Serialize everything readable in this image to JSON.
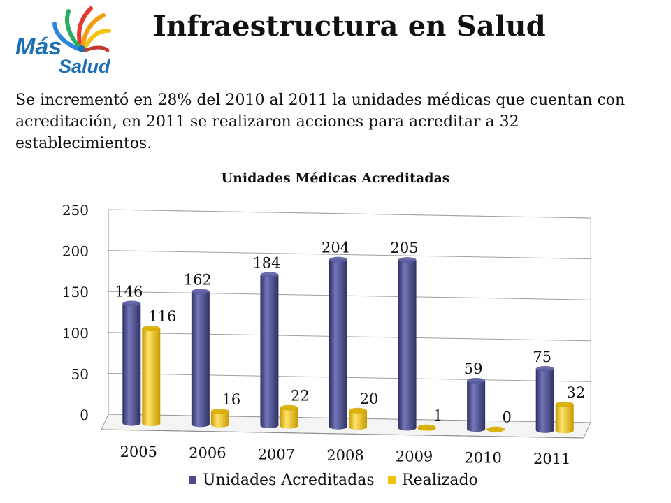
{
  "header": {
    "logo_text_1": "Más",
    "logo_text_2": "Salud",
    "title": "Infraestructura en Salud"
  },
  "body": {
    "text": "Se incrementó en 28% del 2010 al 2011 la unidades médicas que cuentan con acreditación, en 2011 se realizaron acciones para acreditar a 32 establecimientos."
  },
  "colors": {
    "series1": "#4a4d8c",
    "series2": "#f2c100",
    "axis": "#8a8a8a"
  },
  "chart_data": {
    "type": "bar",
    "title": "Unidades Médicas Acreditadas",
    "categories": [
      "2005",
      "2006",
      "2007",
      "2008",
      "2009",
      "2010",
      "2011"
    ],
    "series": [
      {
        "name": "Unidades Acreditadas",
        "values": [
          146,
          162,
          184,
          204,
          205,
          59,
          75
        ]
      },
      {
        "name": "Realizado",
        "values": [
          116,
          16,
          22,
          20,
          1,
          0,
          32
        ]
      }
    ],
    "ylim": [
      0,
      250
    ],
    "yticks": [
      0,
      50,
      100,
      150,
      200,
      250
    ],
    "grid": true,
    "legend_position": "bottom",
    "data_labels": true
  }
}
